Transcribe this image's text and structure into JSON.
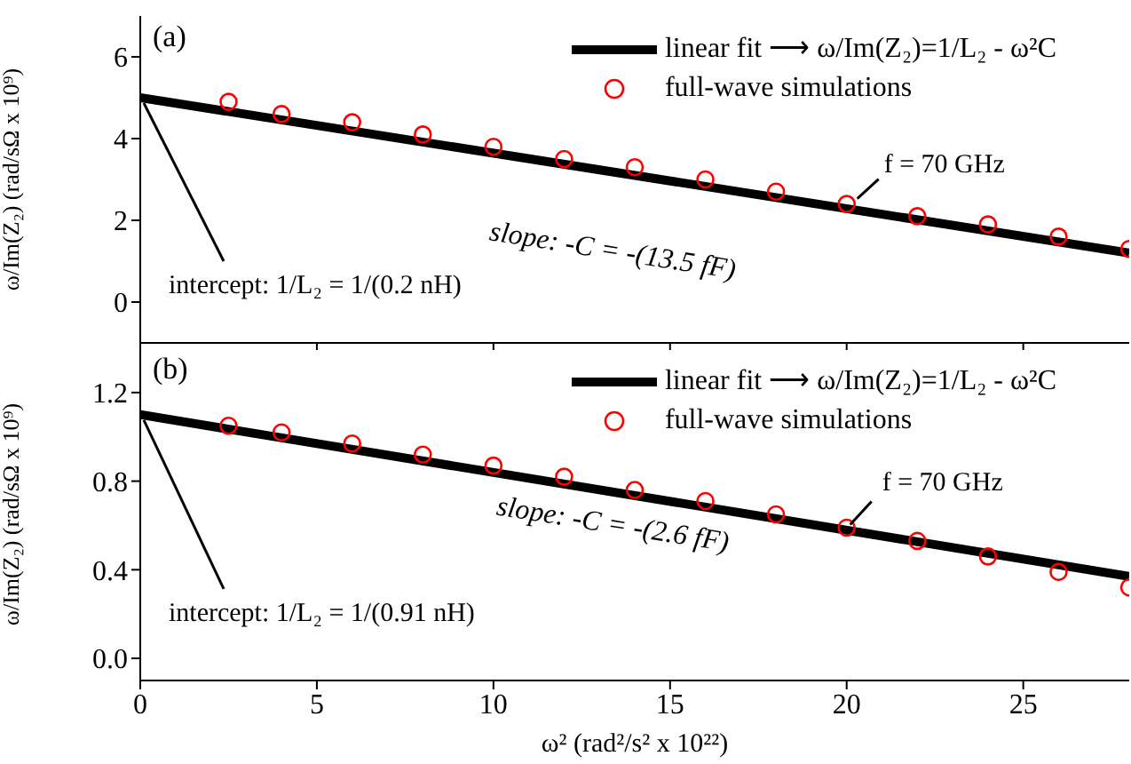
{
  "chart_data": [
    {
      "type": "line",
      "title": "(a)",
      "ylabel": "ω/Im(Z₂) (rad/sΩ x 10⁹)",
      "xlim": [
        0,
        28
      ],
      "xticks": [
        0,
        5,
        10,
        15,
        20,
        25
      ],
      "ylim": [
        -1,
        7
      ],
      "yticks": [
        0,
        2,
        4,
        6
      ],
      "tick_labels": "y",
      "legend": "top right",
      "series": [
        {
          "name": "linear fit ⟶ ω/Im(Z₂)=1/L₂ - ω²C",
          "type": "line",
          "marker": "none",
          "color": "#000000",
          "x": [
            0,
            28
          ],
          "values": [
            5.0,
            1.2
          ]
        },
        {
          "name": "full-wave simulations",
          "type": "scatter",
          "marker": "circle",
          "color": "#ff0000",
          "x": [
            2.5,
            4,
            6,
            8,
            10,
            12,
            14,
            16,
            18,
            20,
            22,
            24,
            26,
            28
          ],
          "values": [
            4.9,
            4.6,
            4.4,
            4.1,
            3.8,
            3.5,
            3.3,
            3.0,
            2.7,
            2.4,
            2.1,
            1.9,
            1.6,
            1.3
          ]
        }
      ],
      "annotations": [
        {
          "text": "intercept: 1/L₂ = 1/(0.2 nH)",
          "x": 0,
          "y": 5.0
        },
        "slope: -C = -(13.5 fF)",
        {
          "text": "f = 70 GHz",
          "x": 20.2,
          "y": 2.4
        }
      ]
    },
    {
      "type": "line",
      "title": "(b)",
      "xlabel": "ω² (rad²/s² x 10²²)",
      "ylabel": "ω/Im(Z₂) (rad/sΩ x 10⁹)",
      "xlim": [
        0,
        28
      ],
      "xticks": [
        0,
        5,
        10,
        15,
        20,
        25
      ],
      "ylim": [
        -0.1,
        1.4
      ],
      "yticks": [
        {
          "value": 0,
          "label": "0.0"
        },
        0.4,
        0.8,
        1.2
      ],
      "legend": "top right",
      "series": [
        {
          "name": "linear fit ⟶ ω/Im(Z₂)=1/L₂ - ω²C",
          "type": "line",
          "marker": "none",
          "color": "#000000",
          "x": [
            0,
            28
          ],
          "values": [
            1.1,
            0.37
          ]
        },
        {
          "name": "full-wave simulations",
          "type": "scatter",
          "marker": "circle",
          "color": "#ff0000",
          "x": [
            2.5,
            4,
            6,
            8,
            10,
            12,
            14,
            16,
            18,
            20,
            22,
            24,
            26,
            28
          ],
          "values": [
            1.05,
            1.02,
            0.97,
            0.92,
            0.87,
            0.82,
            0.76,
            0.71,
            0.65,
            0.59,
            0.53,
            0.46,
            0.39,
            0.32
          ]
        }
      ],
      "annotations": [
        {
          "text": "intercept: 1/L₂ = 1/(0.91 nH)",
          "x": 0,
          "y": 1.1
        },
        "slope: -C = -(2.6 fF)",
        {
          "text": "f = 70 GHz",
          "x": 20.0,
          "y": 0.58
        }
      ]
    }
  ]
}
